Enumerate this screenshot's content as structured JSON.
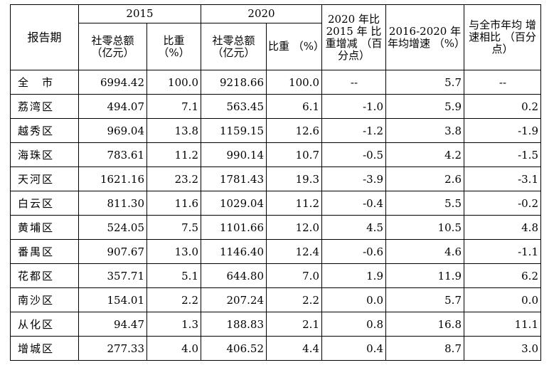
{
  "table": {
    "header": {
      "period": "报告期",
      "year_2015": "2015",
      "year_2020": "2020",
      "share_change": "2020 年比 2015 年 比重增减 （百分点）",
      "avg_growth": "2016-2020 年年均增速 （%）",
      "vs_city": "与全市年均 增速相比 （百分点）",
      "retail_total": "社零总额 （亿元）",
      "share": "比重 （%）"
    },
    "rows": [
      {
        "region": "全　市",
        "r2015": "6994.42",
        "s2015": "100.0",
        "r2020": "9218.66",
        "s2020": "100.0",
        "change": "--",
        "growth": "5.7",
        "vs": "--"
      },
      {
        "region": "荔湾区",
        "r2015": "494.07",
        "s2015": "7.1",
        "r2020": "563.45",
        "s2020": "6.1",
        "change": "-1.0",
        "growth": "5.9",
        "vs": "0.2"
      },
      {
        "region": "越秀区",
        "r2015": "969.04",
        "s2015": "13.8",
        "r2020": "1159.15",
        "s2020": "12.6",
        "change": "-1.2",
        "growth": "3.8",
        "vs": "-1.9"
      },
      {
        "region": "海珠区",
        "r2015": "783.61",
        "s2015": "11.2",
        "r2020": "990.14",
        "s2020": "10.7",
        "change": "-0.5",
        "growth": "4.2",
        "vs": "-1.5"
      },
      {
        "region": "天河区",
        "r2015": "1621.16",
        "s2015": "23.2",
        "r2020": "1781.43",
        "s2020": "19.3",
        "change": "-3.9",
        "growth": "2.6",
        "vs": "-3.1"
      },
      {
        "region": "白云区",
        "r2015": "811.30",
        "s2015": "11.6",
        "r2020": "1029.04",
        "s2020": "11.2",
        "change": "-0.4",
        "growth": "5.5",
        "vs": "-0.2"
      },
      {
        "region": "黄埔区",
        "r2015": "524.05",
        "s2015": "7.5",
        "r2020": "1101.66",
        "s2020": "12.0",
        "change": "4.5",
        "growth": "10.5",
        "vs": "4.8"
      },
      {
        "region": "番禺区",
        "r2015": "907.67",
        "s2015": "13.0",
        "r2020": "1146.40",
        "s2020": "12.4",
        "change": "-0.6",
        "growth": "4.6",
        "vs": "-1.1"
      },
      {
        "region": "花都区",
        "r2015": "357.71",
        "s2015": "5.1",
        "r2020": "644.80",
        "s2020": "7.0",
        "change": "1.9",
        "growth": "11.9",
        "vs": "6.2"
      },
      {
        "region": "南沙区",
        "r2015": "154.01",
        "s2015": "2.2",
        "r2020": "207.24",
        "s2020": "2.2",
        "change": "0.0",
        "growth": "5.7",
        "vs": "0.0"
      },
      {
        "region": "从化区",
        "r2015": "94.47",
        "s2015": "1.3",
        "r2020": "188.83",
        "s2020": "2.1",
        "change": "0.8",
        "growth": "16.8",
        "vs": "11.1"
      },
      {
        "region": "增城区",
        "r2015": "277.33",
        "s2015": "4.0",
        "r2020": "406.52",
        "s2020": "4.4",
        "change": "0.4",
        "growth": "8.7",
        "vs": "3.0"
      }
    ]
  }
}
